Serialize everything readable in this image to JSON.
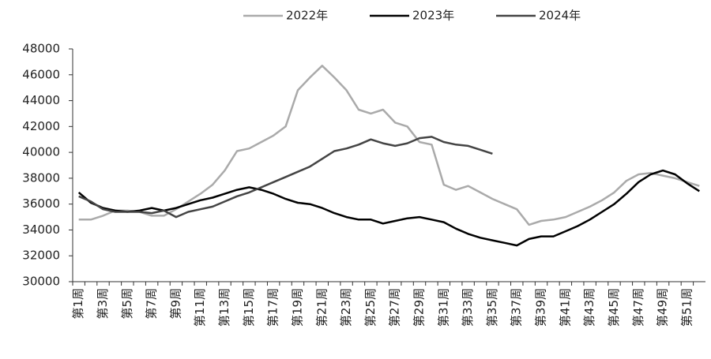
{
  "chart_data": {
    "type": "line",
    "categories": [
      "第1周",
      null,
      "第3周",
      null,
      "第5周",
      null,
      "第7周",
      null,
      "第9周",
      null,
      "第11周",
      null,
      "第13周",
      null,
      "第15周",
      null,
      "第17周",
      null,
      "第19周",
      null,
      "第21周",
      null,
      "第23周",
      null,
      "第25周",
      null,
      "第27周",
      null,
      "第29周",
      null,
      "第31周",
      null,
      "第33周",
      null,
      "第35周",
      null,
      "第37周",
      null,
      "第39周",
      null,
      "第41周",
      null,
      "第43周",
      null,
      "第45周",
      null,
      "第47周",
      null,
      "第49周",
      null,
      "第51周",
      null
    ],
    "series": [
      {
        "name": "2022年",
        "color": "#aaaaaa",
        "values": [
          34800,
          34800,
          35100,
          35500,
          35500,
          35400,
          35100,
          35100,
          35600,
          36200,
          36800,
          37500,
          38600,
          40100,
          40300,
          40800,
          41300,
          42000,
          44800,
          45800,
          46700,
          45800,
          44800,
          43300,
          43000,
          43300,
          42300,
          42000,
          40800,
          40600,
          37500,
          37100,
          37400,
          36900,
          36400,
          36000,
          35600,
          34400,
          34700,
          34800,
          35000,
          35400,
          35800,
          36300,
          36900,
          37800,
          38300,
          38400,
          38200,
          38000,
          37700,
          37400
        ]
      },
      {
        "name": "2023年",
        "color": "#000000",
        "values": [
          36900,
          36100,
          35700,
          35500,
          35400,
          35500,
          35700,
          35500,
          35700,
          36000,
          36300,
          36500,
          36800,
          37100,
          37300,
          37100,
          36800,
          36400,
          36100,
          36000,
          35700,
          35300,
          35000,
          34800,
          34800,
          34500,
          34700,
          34900,
          35000,
          34800,
          34600,
          34100,
          33700,
          33400,
          33200,
          33000,
          32800,
          33300,
          33500,
          33500,
          33900,
          34300,
          34800,
          35400,
          36000,
          36800,
          37700,
          38300,
          38600,
          38300,
          37600,
          37000
        ]
      },
      {
        "name": "2024年",
        "color": "#444444",
        "values": [
          36600,
          36200,
          35600,
          35400,
          35400,
          35400,
          35300,
          35500,
          35000,
          35400,
          35600,
          35800,
          36200,
          36600,
          36900,
          37300,
          37700,
          38100,
          38500,
          38900,
          39500,
          40100,
          40300,
          40600,
          41000,
          40700,
          40500,
          40700,
          41100,
          41200,
          40800,
          40600,
          40500,
          40200,
          39900,
          null,
          null,
          null,
          null,
          null,
          null,
          null,
          null,
          null,
          null,
          null,
          null,
          null,
          null,
          null,
          null,
          null
        ]
      }
    ],
    "ylim": [
      30000,
      48000
    ],
    "yticks": [
      30000,
      32000,
      34000,
      36000,
      38000,
      40000,
      42000,
      44000,
      46000,
      48000
    ],
    "grid": false,
    "legend": "top"
  }
}
